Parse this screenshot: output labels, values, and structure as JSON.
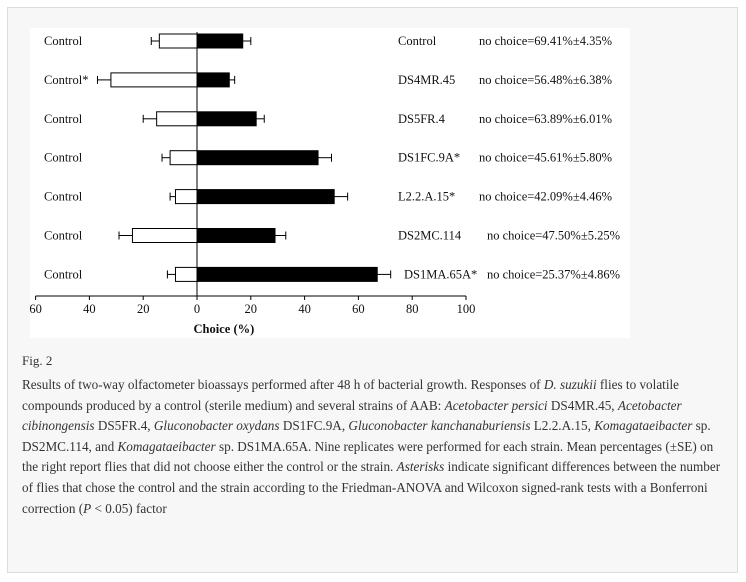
{
  "figure_label": "Fig. 2",
  "caption": {
    "p1": "Results of two-way olfactometer bioassays performed after 48 h of bacterial growth. Responses of ",
    "d": "D. suzukii",
    "p2": " flies to volatile compounds produced by a control (sterile medium) and several strains of AAB: ",
    "s1": "Acetobacter persici",
    "p3": " DS4MR.45, ",
    "s2": "Acetobacter cibinongensis",
    "p4": " DS5FR.4, ",
    "s3": "Gluconobacter oxydans",
    "p5": " DS1FC.9A, ",
    "s4": "Gluconobacter kanchanaburiensis",
    "p6": " L2.2.A.15, ",
    "s5": "Komagataeibacter",
    "p7": " sp. DS2MC.114, and ",
    "s6": "Komagataeibacter",
    "p8": " sp. DS1MA.65A. Nine replicates were performed for each strain. Mean percentages (±SE) on the right report flies that did not choose either the control or the strain. ",
    "s7": "Asterisks",
    "p9": " indicate significant differences between the number of flies that chose the control and the strain according to the Friedman-ANOVA and Wilcoxon signed-rank tests with a Bonferroni correction (",
    "s8": "P",
    "p10": " < 0.05) factor"
  },
  "chart_data": {
    "type": "bar",
    "orientation": "horizontal-diverging",
    "xlabel": "Choice (%)",
    "xlim": [
      -60,
      100
    ],
    "xticks": [
      -60,
      -40,
      -20,
      0,
      20,
      40,
      60,
      80,
      100
    ],
    "xtick_labels": [
      "60",
      "40",
      "20",
      "0",
      "20",
      "40",
      "60",
      "80",
      "100"
    ],
    "rows": [
      {
        "control_label": "Control",
        "control": 14,
        "control_se": 3,
        "strain": 17,
        "strain_se": 3,
        "strain_label": "Control",
        "no_choice": "no choice=69.41%±4.35%"
      },
      {
        "control_label": "Control*",
        "control": 32,
        "control_se": 5,
        "strain": 12,
        "strain_se": 2,
        "strain_label": "DS4MR.45",
        "no_choice": "no choice=56.48%±6.38%"
      },
      {
        "control_label": "Control",
        "control": 15,
        "control_se": 5,
        "strain": 22,
        "strain_se": 3,
        "strain_label": "DS5FR.4",
        "no_choice": "no choice=63.89%±6.01%"
      },
      {
        "control_label": "Control",
        "control": 10,
        "control_se": 3,
        "strain": 45,
        "strain_se": 5,
        "strain_label": "DS1FC.9A*",
        "no_choice": "no choice=45.61%±5.80%"
      },
      {
        "control_label": "Control",
        "control": 8,
        "control_se": 2,
        "strain": 51,
        "strain_se": 5,
        "strain_label": "L2.2.A.15*",
        "no_choice": "no choice=42.09%±4.46%"
      },
      {
        "control_label": "Control",
        "control": 24,
        "control_se": 5,
        "strain": 29,
        "strain_se": 4,
        "strain_label": "DS2MC.114",
        "no_choice": "no choice=47.50%±5.25%"
      },
      {
        "control_label": "Control",
        "control": 8,
        "control_se": 3,
        "strain": 67,
        "strain_se": 5,
        "strain_label": "DS1MA.65A*",
        "no_choice": "no choice=25.37%±4.86%"
      }
    ],
    "colors": {
      "control": "#ffffff",
      "strain": "#000000",
      "outline": "#000000"
    }
  }
}
